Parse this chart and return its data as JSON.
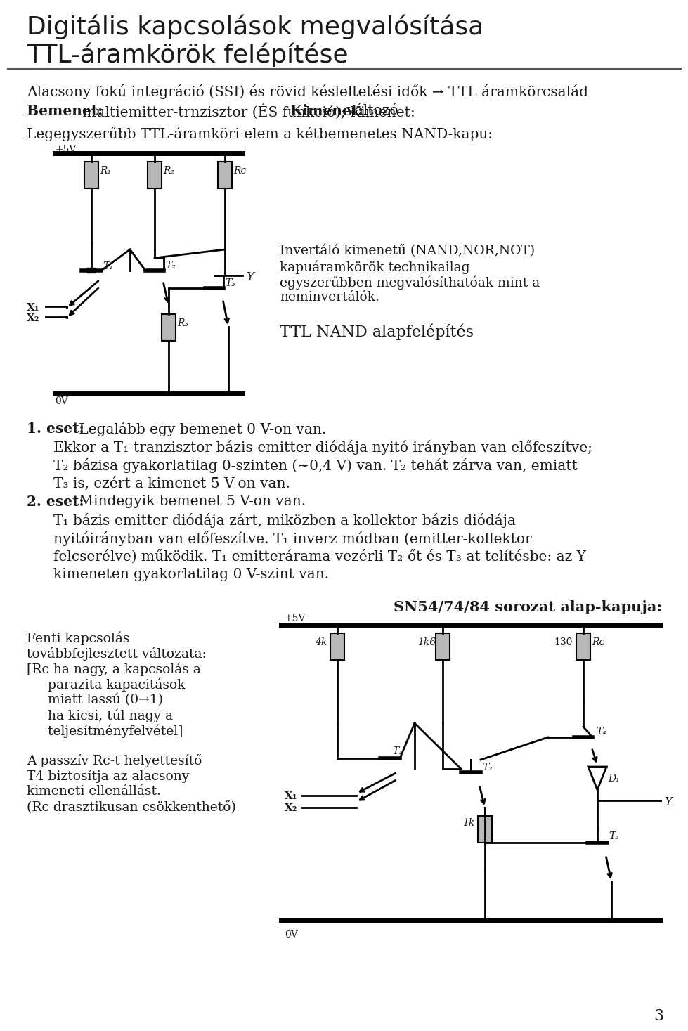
{
  "title_line1": "Digitális kapcsolások megvalósítása",
  "title_line2": "TTL-áramkörök felépítése",
  "bg_color": "#ffffff",
  "text_color": "#1a1a1a",
  "line1": "Alacsony fokú integráció (SSI) és rövid késleltetési idők → TTL áramkörcsalád",
  "line2_bold": "Bemenet:",
  "line2_rest": " multiemitter-trnzisztor (ÉS funkció); ",
  "line2_bold2": "Kimenet:",
  "line2_rest2": " változó",
  "line3": "Legegyszerűbb TTL-áramköri elem a kétbemenetes NAND-kapu:",
  "right_text1": "Invertáló kimenetű (NAND,NOR,NOT)",
  "right_text2": "kapuáramkörök technikailag",
  "right_text3": "egyszerűbben megvalósíthatóak mint a",
  "right_text4": "neminvertálók.",
  "ttl_label": "TTL NAND alapfelépítés",
  "case1_bold": "1. eset:",
  "case1_text": " Legalább egy bemenet 0 V-on van.",
  "case1_d1": "Ekkor a T₁-tranzisztor bázis-emitter diódája nyitó irányban van előfeszítve;",
  "case1_d2": "T₂ bázisa gyakorlatilag 0-szinten (~0,4 V) van. T₂ tehát zárva van, emiatt",
  "case1_d3": "T₃ is, ezért a kimenet 5 V-on van.",
  "case2_bold": "2. eset:",
  "case2_text": " Mindegyik bemenet 5 V-on van.",
  "case2_d1": "T₁ bázis-emitter diódája zárt, miközben a kollektor-bázis diódája",
  "case2_d2": "nyitóirányban van előfeszítve. T₁ inverz módban (emitter-kollektor",
  "case2_d3": "felcserélve) működik. T₁ emitterárama vezérli T₂-őt és T₃-at telítésbe: az Y",
  "case2_d4": "kimeneten gyakorlatilag 0 V-szint van.",
  "sn_label": "SN54/74/84 sorozat alap-kapuja:",
  "left_text1": "Fenti kapcsolás",
  "left_text2": "továbbfejlesztett változata:",
  "left_text3": "[Rᴄ ha nagy, a kapcsolás a",
  "left_text4": "     parazita kapacitások",
  "left_text5": "     miatt lassú (0→1)",
  "left_text6": "     ha kicsi, túl nagy a",
  "left_text7": "     teljesítményfelvétel]",
  "left_text8": "A passzív Rᴄ-t helyettesítő",
  "left_text9": "T4 biztosítja az alacsony",
  "left_text10": "kimeneti ellenállást.",
  "left_text11": "(Rᴄ drasztikusan csökkenthető)",
  "page_number": "3"
}
